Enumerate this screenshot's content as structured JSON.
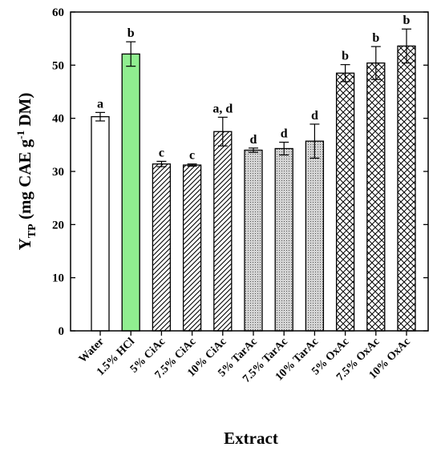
{
  "chart_data": {
    "type": "bar",
    "xlabel": "Extract",
    "ylabel": {
      "main": "Y",
      "subscript": "TP",
      "unit_pre": " (mg CAE g",
      "unit_sup": "-1",
      "unit_post": " DM)"
    },
    "ylim": [
      0,
      60
    ],
    "yticks": [
      0,
      10,
      20,
      30,
      40,
      50,
      60
    ],
    "grid": false,
    "categories": [
      "Water",
      "1.5% HCl",
      "5% CiAc",
      "7.5% CiAc",
      "10% CiAc",
      "5% TarAc",
      "7.5% TarAc",
      "10% TarAc",
      "5% OxAc",
      "7.5% OxAc",
      "10% OxAc"
    ],
    "values": [
      40.3,
      52.1,
      31.4,
      31.2,
      37.5,
      34.0,
      34.3,
      35.7,
      48.5,
      50.4,
      53.6
    ],
    "errors": [
      0.8,
      2.3,
      0.5,
      0.2,
      2.7,
      0.4,
      1.2,
      3.2,
      1.6,
      3.1,
      3.2
    ],
    "significance_labels": [
      "a",
      "b",
      "c",
      "c",
      "a, d",
      "d",
      "d",
      "d",
      "b",
      "b",
      "b"
    ],
    "bar_styles": [
      "white",
      "green",
      "diagonal",
      "diagonal",
      "diagonal",
      "dots",
      "dots",
      "dots",
      "crosshatch",
      "crosshatch",
      "crosshatch"
    ],
    "colors": {
      "green": "#90ee90",
      "dots_fill": "#d4d4d4",
      "stroke": "#000000"
    }
  }
}
